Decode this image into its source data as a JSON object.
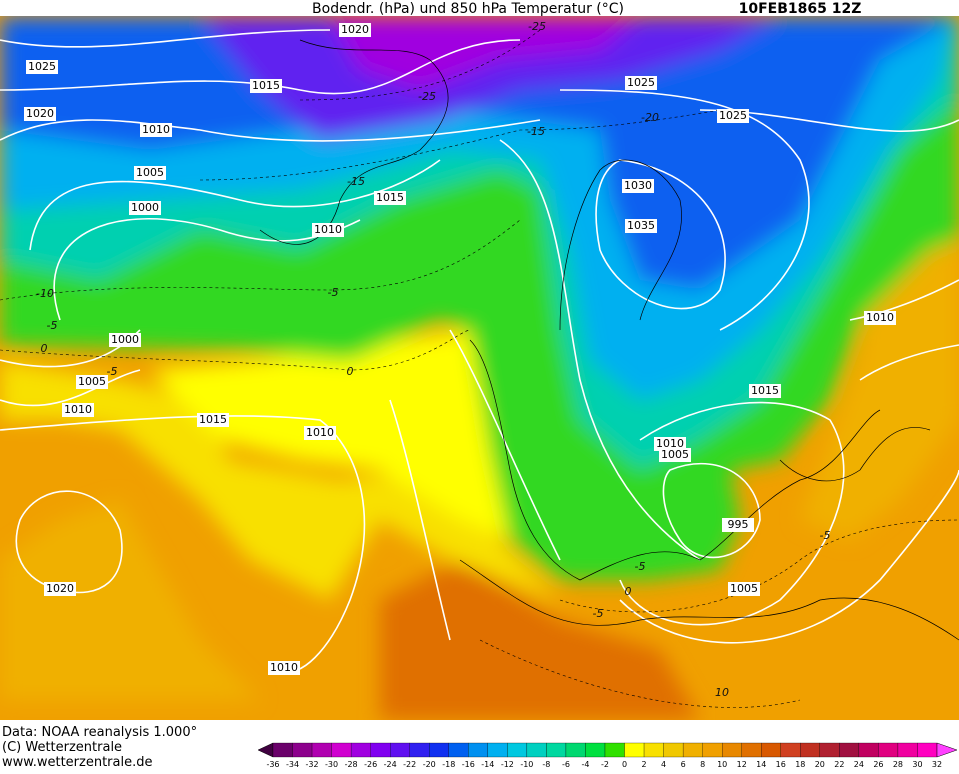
{
  "header": {
    "title": "Bodendr. (hPa) und 850 hPa Temperatur (°C)",
    "date": "10FEB1865 12Z"
  },
  "isobar_labels": [
    "1020",
    "1025",
    "1015",
    "1020",
    "1010",
    "1005",
    "1000",
    "1015",
    "1010",
    "1000",
    "1005",
    "1010",
    "1015",
    "1010",
    "1025",
    "1025",
    "1030",
    "1035",
    "1010",
    "1015",
    "1010",
    "1005",
    "995",
    "1005",
    "1020",
    "1010"
  ],
  "temperature_labels": [
    "-25",
    "-25",
    "-20",
    "-15",
    "-15",
    "-10",
    "-5",
    "-5",
    "0",
    "-5",
    "0",
    "-5",
    "-5",
    "0",
    "-5",
    "10"
  ],
  "footer": [
    "Data: NOAA reanalysis 1.000°",
    "(C) Wetterzentrale",
    "www.wetterzentrale.de"
  ],
  "colorbar": {
    "labels": [
      "-36",
      "-34",
      "-32",
      "-30",
      "-28",
      "-26",
      "-24",
      "-22",
      "-20",
      "-18",
      "-16",
      "-14",
      "-12",
      "-10",
      "-8",
      "-6",
      "-4",
      "-2",
      "0",
      "2",
      "4",
      "6",
      "8",
      "10",
      "12",
      "14",
      "16",
      "18",
      "20",
      "22",
      "24",
      "26",
      "28",
      "30",
      "32"
    ],
    "colors": [
      "#400040",
      "#6a006a",
      "#8c008c",
      "#b000b0",
      "#d000d0",
      "#a000e0",
      "#8000f0",
      "#6010f0",
      "#3020f0",
      "#1030f0",
      "#0060f0",
      "#0090f0",
      "#00b0f0",
      "#00c8e0",
      "#00d0c0",
      "#00d8a0",
      "#00d870",
      "#00e040",
      "#30e000",
      "#ffff00",
      "#f8e000",
      "#f0c800",
      "#f0b000",
      "#f0a000",
      "#e88800",
      "#e07000",
      "#d85800",
      "#d04020",
      "#c03020",
      "#b02030",
      "#a01040",
      "#c00060",
      "#e00080",
      "#f000a0",
      "#ff00c0",
      "#ff40ff"
    ]
  }
}
